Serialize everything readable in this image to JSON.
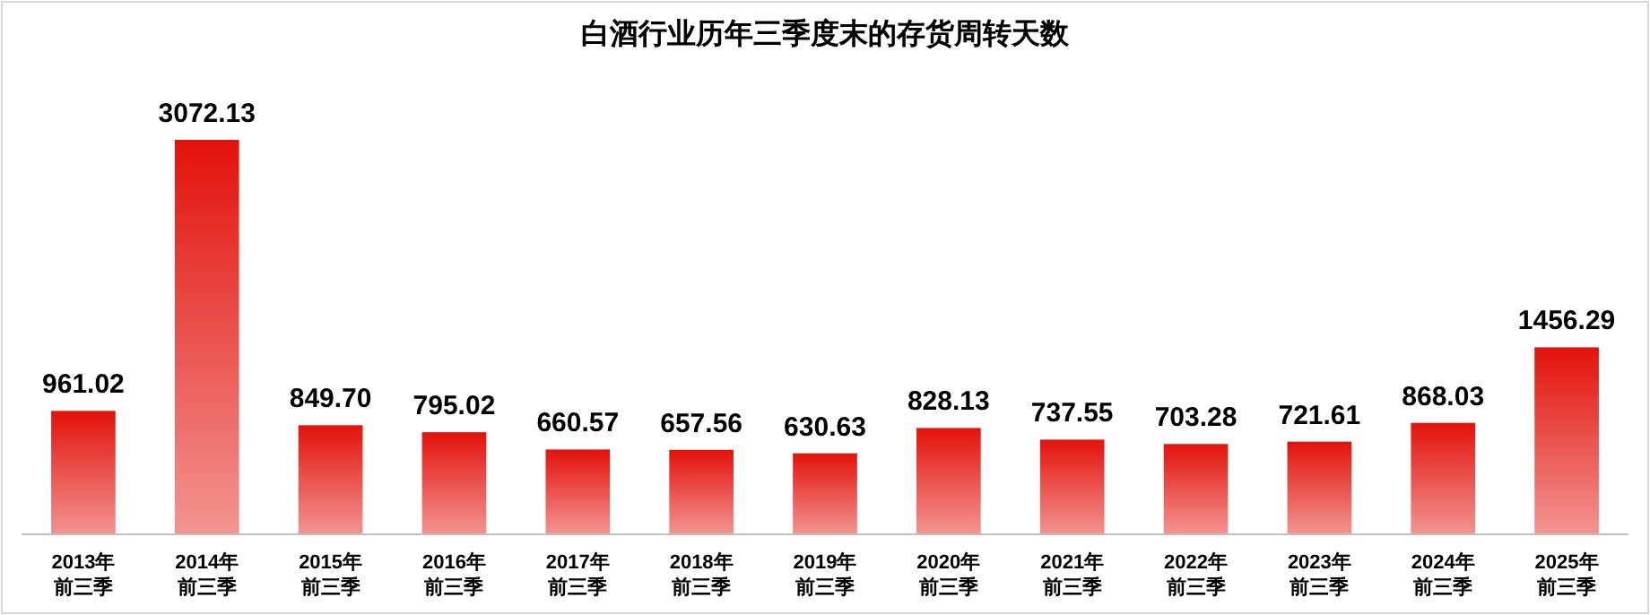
{
  "chart_data": {
    "type": "bar",
    "title": "白酒行业历年三季度末的存货周转天数",
    "categories": [
      "2013年前三季",
      "2014年前三季",
      "2015年前三季",
      "2016年前三季",
      "2017年前三季",
      "2018年前三季",
      "2019年前三季",
      "2020年前三季",
      "2021年前三季",
      "2022年前三季",
      "2023年前三季",
      "2024年前三季",
      "2025年前三季"
    ],
    "values": [
      961.02,
      3072.13,
      849.7,
      795.02,
      660.57,
      657.56,
      630.63,
      828.13,
      737.55,
      703.28,
      721.61,
      868.03,
      1456.29
    ],
    "value_labels": [
      "961.02",
      "3072.13",
      "849.70",
      "795.02",
      "660.57",
      "657.56",
      "630.63",
      "828.13",
      "737.55",
      "703.28",
      "721.61",
      "868.03",
      "1456.29"
    ],
    "color": "#e3120b"
  }
}
